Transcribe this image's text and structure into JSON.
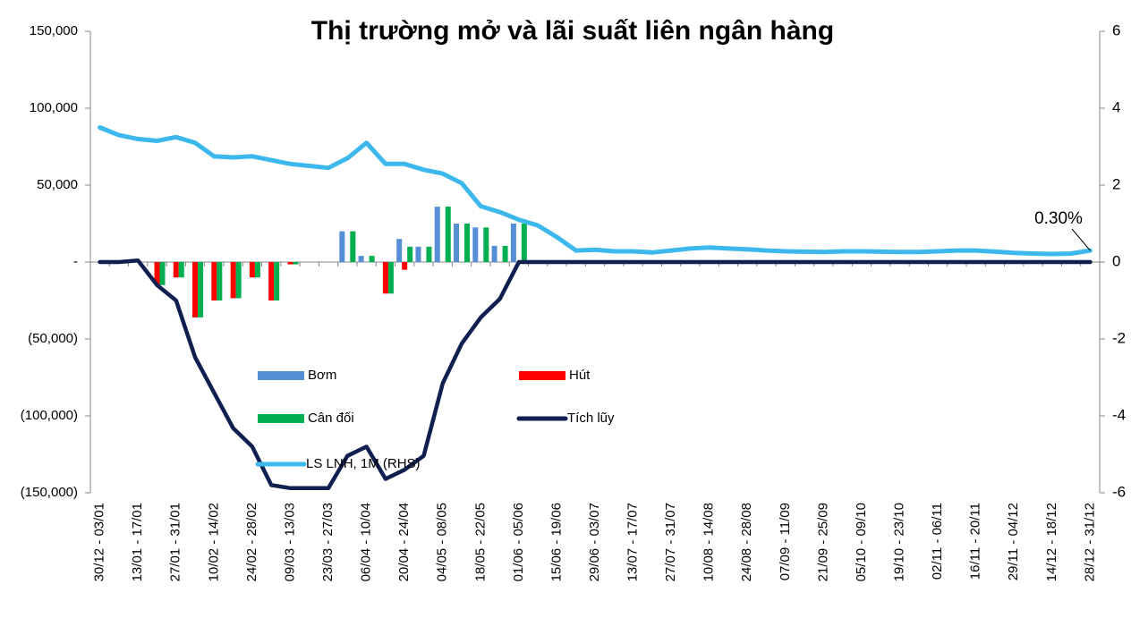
{
  "chart_data": {
    "type": "bar_line",
    "title": "Thị trường mở và lãi suất liên ngân hàng",
    "categories": [
      "30/12 - 03/01",
      null,
      "13/01 - 17/01",
      null,
      "27/01 - 31/01",
      null,
      "10/02 - 14/02",
      null,
      "24/02 - 28/02",
      null,
      "09/03 - 13/03",
      null,
      "23/03 - 27/03",
      null,
      "06/04 - 10/04",
      null,
      "20/04 - 24/04",
      null,
      "04/05 - 08/05",
      null,
      "18/05 - 22/05",
      null,
      "01/06 - 05/06",
      null,
      "15/06 - 19/06",
      null,
      "29/06 - 03/07",
      null,
      "13/07 - 17/07",
      null,
      "27/07 - 31/07",
      null,
      "10/08 - 14/08",
      null,
      "24/08 - 28/08",
      null,
      "07/09 - 11/09",
      null,
      "21/09 - 25/09",
      null,
      "05/10 - 09/10",
      null,
      "19/10 - 23/10",
      null,
      "02/11 - 06/11",
      null,
      "16/11 - 20/11",
      null,
      "29/11 - 04/12",
      null,
      "14/12 - 18/12",
      null,
      "28/12 - 31/12"
    ],
    "series": [
      {
        "name": "Bơm",
        "kind": "bar",
        "color": "#558ed5",
        "values": [
          0,
          0,
          0,
          0,
          0,
          0,
          0,
          0,
          0,
          0,
          0,
          0,
          0,
          20000,
          4000,
          0,
          15000,
          10000,
          36000,
          25000,
          22500,
          10500,
          25000,
          0,
          0,
          0,
          0,
          0,
          0,
          0,
          0,
          0,
          0,
          0,
          0,
          0,
          0,
          0,
          0,
          0,
          0,
          0,
          0,
          0,
          0,
          0,
          0,
          0,
          0,
          0,
          0,
          0,
          0
        ]
      },
      {
        "name": "Hút",
        "kind": "bar",
        "color": "#ff0000",
        "values": [
          0,
          0,
          0,
          -15000,
          -10000,
          -36000,
          -25000,
          -23500,
          -10000,
          -25000,
          -1500,
          0,
          0,
          0,
          0,
          -20500,
          -5000,
          0,
          0,
          0,
          0,
          0,
          0,
          0,
          0,
          0,
          0,
          0,
          0,
          0,
          0,
          0,
          0,
          0,
          0,
          0,
          0,
          0,
          0,
          0,
          0,
          0,
          0,
          0,
          0,
          0,
          0,
          0,
          0,
          0,
          0,
          0,
          0
        ]
      },
      {
        "name": "Cân đối",
        "kind": "bar",
        "color": "#00b050",
        "values": [
          0,
          0,
          0,
          -15000,
          -10000,
          -36000,
          -25000,
          -23500,
          -10000,
          -25000,
          -1500,
          0,
          0,
          20000,
          4000,
          -20500,
          10000,
          10000,
          36000,
          25000,
          22500,
          10500,
          25000,
          0,
          0,
          0,
          0,
          0,
          0,
          0,
          0,
          0,
          0,
          0,
          0,
          0,
          0,
          0,
          0,
          0,
          0,
          0,
          0,
          0,
          0,
          0,
          0,
          0,
          0,
          0,
          0,
          0,
          0
        ]
      },
      {
        "name": "Tích lũy",
        "kind": "line",
        "color": "#0f1f4f",
        "values": [
          0,
          0,
          1000,
          -15000,
          -25000,
          -62000,
          -85000,
          -108000,
          -120000,
          -145000,
          -147000,
          -147000,
          -147000,
          -126000,
          -120000,
          -141000,
          -135000,
          -126000,
          -79000,
          -53000,
          -36000,
          -24000,
          0,
          0,
          0,
          0,
          0,
          0,
          0,
          0,
          0,
          0,
          0,
          0,
          0,
          0,
          0,
          0,
          0,
          0,
          0,
          0,
          0,
          0,
          0,
          0,
          0,
          0,
          0,
          0,
          0,
          0,
          0
        ]
      },
      {
        "name": "LS LNH, 1M (RHS)",
        "kind": "line",
        "axis": "y2",
        "color": "#3cb8ec",
        "values": [
          3.5,
          3.3,
          3.2,
          3.15,
          3.25,
          3.1,
          2.75,
          2.72,
          2.75,
          2.65,
          2.55,
          2.5,
          2.45,
          2.7,
          3.1,
          2.55,
          2.55,
          2.4,
          2.3,
          2.05,
          1.45,
          1.3,
          1.1,
          0.95,
          0.65,
          0.3,
          0.32,
          0.28,
          0.28,
          0.25,
          0.3,
          0.35,
          0.38,
          0.35,
          0.33,
          0.3,
          0.28,
          0.27,
          0.26,
          0.28,
          0.28,
          0.27,
          0.26,
          0.26,
          0.28,
          0.3,
          0.3,
          0.27,
          0.24,
          0.22,
          0.21,
          0.22,
          0.3
        ]
      }
    ],
    "annotation": "0.30%",
    "ylim": [
      -150000,
      150000
    ],
    "yticks": [
      {
        "value": 150000,
        "label": "150,000"
      },
      {
        "value": 100000,
        "label": "100,000"
      },
      {
        "value": 50000,
        "label": "50,000"
      },
      {
        "value": 0,
        "label": "-"
      },
      {
        "value": -50000,
        "label": "(50,000)"
      },
      {
        "value": -100000,
        "label": "(100,000)"
      },
      {
        "value": -150000,
        "label": "(150,000)"
      }
    ],
    "y2lim": [
      -6,
      6
    ],
    "y2ticks": [
      6,
      4,
      2,
      0,
      -2,
      -4,
      -6
    ],
    "grid": false
  }
}
